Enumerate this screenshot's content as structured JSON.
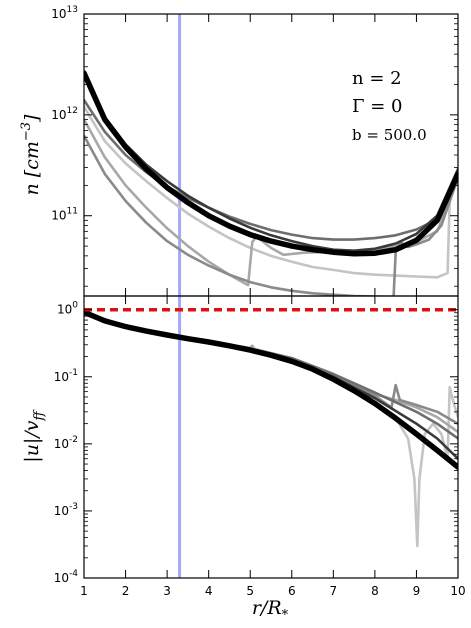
{
  "chart_data": [
    {
      "type": "line",
      "panel": "top",
      "ylabel": "n [cm^-3]",
      "yscale": "log",
      "xlim": [
        1,
        10
      ],
      "ylim": [
        16000000000.0,
        10000000000000.0
      ],
      "yticks": [
        {
          "value": 100000000000.0,
          "base": "10",
          "exp": "11"
        },
        {
          "value": 1000000000000.0,
          "base": "10",
          "exp": "12"
        },
        {
          "value": 10000000000000.0,
          "base": "10",
          "exp": "13"
        }
      ],
      "annotations": [
        "n = 2",
        "Γ = 0",
        "b = 500.0"
      ],
      "vline": {
        "x": 3.3,
        "color": "#8a8af5"
      },
      "series": [
        {
          "color": "#c4c4c4",
          "width": 2.6,
          "points": [
            [
              1,
              1200000000000.0
            ],
            [
              1.5,
              550000000000.0
            ],
            [
              2,
              330000000000.0
            ],
            [
              2.5,
              220000000000.0
            ],
            [
              3,
              150000000000.0
            ],
            [
              3.5,
              105000000000.0
            ],
            [
              4,
              78000000000.0
            ],
            [
              4.5,
              60000000000.0
            ],
            [
              5,
              48000000000.0
            ],
            [
              5.5,
              40000000000.0
            ],
            [
              6,
              35000000000.0
            ],
            [
              6.5,
              31000000000.0
            ],
            [
              7,
              29000000000.0
            ],
            [
              7.5,
              27000000000.0
            ],
            [
              8,
              26000000000.0
            ],
            [
              8.5,
              25500000000.0
            ],
            [
              9,
              25000000000.0
            ],
            [
              9.5,
              24500000000.0
            ],
            [
              9.75,
              27000000000.0
            ],
            [
              9.8,
              145000000000.0
            ],
            [
              9.9,
              200000000000.0
            ],
            [
              10,
              240000000000.0
            ]
          ]
        },
        {
          "color": "#a8a8a8",
          "width": 2.6,
          "points": [
            [
              1,
              900000000000.0
            ],
            [
              1.5,
              380000000000.0
            ],
            [
              2,
              200000000000.0
            ],
            [
              2.5,
              120000000000.0
            ],
            [
              3,
              75000000000.0
            ],
            [
              3.5,
              50000000000.0
            ],
            [
              4,
              35000000000.0
            ],
            [
              4.5,
              26000000000.0
            ],
            [
              4.9,
              21000000000.0
            ],
            [
              4.95,
              20500000000.0
            ],
            [
              5.05,
              55000000000.0
            ],
            [
              5.15,
              62000000000.0
            ],
            [
              5.5,
              48000000000.0
            ],
            [
              5.8,
              41000000000.0
            ],
            [
              6.3,
              43000000000.0
            ],
            [
              7,
              44000000000.0
            ],
            [
              7.5,
              45000000000.0
            ],
            [
              8,
              47000000000.0
            ],
            [
              8.5,
              50000000000.0
            ],
            [
              9,
              55000000000.0
            ],
            [
              9.5,
              70000000000.0
            ],
            [
              10,
              230000000000.0
            ]
          ]
        },
        {
          "color": "#8a8a8a",
          "width": 2.6,
          "points": [
            [
              1,
              620000000000.0
            ],
            [
              1.5,
              260000000000.0
            ],
            [
              2,
              140000000000.0
            ],
            [
              2.5,
              85000000000.0
            ],
            [
              3,
              56000000000.0
            ],
            [
              3.5,
              41000000000.0
            ],
            [
              4,
              32000000000.0
            ],
            [
              4.5,
              26000000000.0
            ],
            [
              5,
              22000000000.0
            ],
            [
              5.5,
              19500000000.0
            ],
            [
              6,
              18000000000.0
            ],
            [
              6.5,
              17000000000.0
            ],
            [
              7,
              16500000000.0
            ],
            [
              7.5,
              16000000000.0
            ],
            [
              8,
              15800000000.0
            ],
            [
              8.45,
              15700000000.0
            ],
            [
              8.5,
              44000000000.0
            ],
            [
              8.6,
              55000000000.0
            ],
            [
              8.8,
              49000000000.0
            ],
            [
              9,
              52000000000.0
            ],
            [
              9.3,
              58000000000.0
            ],
            [
              9.6,
              80000000000.0
            ],
            [
              10,
              240000000000.0
            ]
          ]
        },
        {
          "color": "#6e6e6e",
          "width": 2.6,
          "points": [
            [
              1,
              1400000000000.0
            ],
            [
              1.5,
              680000000000.0
            ],
            [
              2,
              400000000000.0
            ],
            [
              2.5,
              270000000000.0
            ],
            [
              3,
              195000000000.0
            ],
            [
              3.5,
              150000000000.0
            ],
            [
              4,
              120000000000.0
            ],
            [
              4.5,
              98000000000.0
            ],
            [
              5,
              83000000000.0
            ],
            [
              5.5,
              72000000000.0
            ],
            [
              6,
              65000000000.0
            ],
            [
              6.5,
              60000000000.0
            ],
            [
              7,
              58000000000.0
            ],
            [
              7.5,
              58000000000.0
            ],
            [
              8,
              60000000000.0
            ],
            [
              8.5,
              64000000000.0
            ],
            [
              9,
              73000000000.0
            ],
            [
              9.5,
              92000000000.0
            ],
            [
              10,
              280000000000.0
            ]
          ]
        },
        {
          "color": "#3a3a3a",
          "width": 2.6,
          "points": [
            [
              1,
              2500000000000.0
            ],
            [
              1.5,
              950000000000.0
            ],
            [
              2,
              510000000000.0
            ],
            [
              2.5,
              320000000000.0
            ],
            [
              3,
              220000000000.0
            ],
            [
              3.5,
              158000000000.0
            ],
            [
              4,
              120000000000.0
            ],
            [
              4.5,
              94000000000.0
            ],
            [
              5,
              76000000000.0
            ],
            [
              5.5,
              64000000000.0
            ],
            [
              6,
              56000000000.0
            ],
            [
              6.5,
              50000000000.0
            ],
            [
              7,
              46000000000.0
            ],
            [
              7.5,
              45000000000.0
            ],
            [
              8,
              47000000000.0
            ],
            [
              8.5,
              53000000000.0
            ],
            [
              9,
              66000000000.0
            ],
            [
              9.5,
              100000000000.0
            ],
            [
              10,
              290000000000.0
            ]
          ]
        },
        {
          "color": "#000000",
          "width": 5.5,
          "points": [
            [
              1,
              2600000000000.0
            ],
            [
              1.5,
              900000000000.0
            ],
            [
              2,
              480000000000.0
            ],
            [
              2.5,
              290000000000.0
            ],
            [
              3,
              190000000000.0
            ],
            [
              3.5,
              135000000000.0
            ],
            [
              4,
              100000000000.0
            ],
            [
              4.5,
              79000000000.0
            ],
            [
              5,
              65000000000.0
            ],
            [
              5.5,
              56000000000.0
            ],
            [
              6,
              50000000000.0
            ],
            [
              6.5,
              46000000000.0
            ],
            [
              7,
              43500000000.0
            ],
            [
              7.5,
              42000000000.0
            ],
            [
              8,
              42500000000.0
            ],
            [
              8.5,
              46000000000.0
            ],
            [
              9,
              57000000000.0
            ],
            [
              9.5,
              90000000000.0
            ],
            [
              10,
              260000000000.0
            ]
          ]
        }
      ]
    },
    {
      "type": "line",
      "panel": "bottom",
      "xlabel": "r/R_*",
      "ylabel": "|u|/v_ff",
      "yscale": "log",
      "xlim": [
        1,
        10
      ],
      "ylim": [
        0.0001,
        1.6
      ],
      "xticks": [
        "1",
        "2",
        "3",
        "4",
        "5",
        "6",
        "7",
        "8",
        "9",
        "10"
      ],
      "yticks": [
        {
          "value": 0.0001,
          "base": "10",
          "exp": "-4"
        },
        {
          "value": 0.001,
          "base": "10",
          "exp": "-3"
        },
        {
          "value": 0.01,
          "base": "10",
          "exp": "-2"
        },
        {
          "value": 0.1,
          "base": "10",
          "exp": "-1"
        },
        {
          "value": 1,
          "base": "10",
          "exp": "0"
        }
      ],
      "hline": {
        "y": 1.0,
        "color": "#dd1111",
        "style": "dashed"
      },
      "vline": {
        "x": 3.3,
        "color": "#8a8af5"
      },
      "series": [
        {
          "color": "#c4c4c4",
          "width": 2.6,
          "points": [
            [
              1,
              0.92
            ],
            [
              1.5,
              0.68
            ],
            [
              2,
              0.56
            ],
            [
              2.5,
              0.48
            ],
            [
              3,
              0.42
            ],
            [
              3.5,
              0.37
            ],
            [
              4,
              0.33
            ],
            [
              4.5,
              0.29
            ],
            [
              5,
              0.25
            ],
            [
              5.5,
              0.21
            ],
            [
              6,
              0.17
            ],
            [
              6.5,
              0.13
            ],
            [
              7,
              0.095
            ],
            [
              7.5,
              0.065
            ],
            [
              8,
              0.042
            ],
            [
              8.5,
              0.024
            ],
            [
              8.8,
              0.012
            ],
            [
              8.95,
              0.003
            ],
            [
              9.02,
              0.0003
            ],
            [
              9.07,
              0.003
            ],
            [
              9.2,
              0.014
            ],
            [
              9.4,
              0.02
            ],
            [
              9.6,
              0.014
            ],
            [
              9.75,
              0.006
            ],
            [
              9.8,
              0.07
            ],
            [
              9.9,
              0.04
            ],
            [
              10,
              0.025
            ]
          ]
        },
        {
          "color": "#a8a8a8",
          "width": 2.6,
          "points": [
            [
              1,
              0.92
            ],
            [
              2,
              0.56
            ],
            [
              3,
              0.42
            ],
            [
              4,
              0.33
            ],
            [
              5,
              0.27
            ],
            [
              5.05,
              0.29
            ],
            [
              5.1,
              0.26
            ],
            [
              6,
              0.19
            ],
            [
              7,
              0.11
            ],
            [
              8,
              0.055
            ],
            [
              8.5,
              0.045
            ],
            [
              9,
              0.035
            ],
            [
              9.5,
              0.025
            ],
            [
              10,
              0.015
            ]
          ]
        },
        {
          "color": "#8a8a8a",
          "width": 2.6,
          "points": [
            [
              1,
              0.92
            ],
            [
              2,
              0.56
            ],
            [
              3,
              0.42
            ],
            [
              4,
              0.33
            ],
            [
              5,
              0.26
            ],
            [
              6,
              0.18
            ],
            [
              7,
              0.105
            ],
            [
              8,
              0.052
            ],
            [
              8.4,
              0.035
            ],
            [
              8.5,
              0.075
            ],
            [
              8.6,
              0.045
            ],
            [
              9,
              0.038
            ],
            [
              9.5,
              0.03
            ],
            [
              10,
              0.02
            ]
          ]
        },
        {
          "color": "#6e6e6e",
          "width": 2.6,
          "points": [
            [
              1,
              0.92
            ],
            [
              2,
              0.56
            ],
            [
              3,
              0.42
            ],
            [
              4,
              0.33
            ],
            [
              5,
              0.26
            ],
            [
              6,
              0.19
            ],
            [
              7,
              0.11
            ],
            [
              8,
              0.058
            ],
            [
              9,
              0.03
            ],
            [
              9.5,
              0.02
            ],
            [
              10,
              0.012
            ]
          ]
        },
        {
          "color": "#3a3a3a",
          "width": 2.6,
          "points": [
            [
              1,
              0.92
            ],
            [
              2,
              0.56
            ],
            [
              3,
              0.42
            ],
            [
              4,
              0.33
            ],
            [
              5,
              0.26
            ],
            [
              6,
              0.18
            ],
            [
              7,
              0.1
            ],
            [
              8,
              0.048
            ],
            [
              9,
              0.02
            ],
            [
              9.5,
              0.012
            ],
            [
              10,
              0.006
            ]
          ]
        },
        {
          "color": "#000000",
          "width": 5.5,
          "points": [
            [
              1,
              0.92
            ],
            [
              1.5,
              0.68
            ],
            [
              2,
              0.56
            ],
            [
              2.5,
              0.48
            ],
            [
              3,
              0.42
            ],
            [
              3.5,
              0.37
            ],
            [
              4,
              0.33
            ],
            [
              4.5,
              0.29
            ],
            [
              5,
              0.25
            ],
            [
              5.5,
              0.21
            ],
            [
              6,
              0.17
            ],
            [
              6.5,
              0.13
            ],
            [
              7,
              0.092
            ],
            [
              7.5,
              0.062
            ],
            [
              8,
              0.04
            ],
            [
              8.5,
              0.024
            ],
            [
              9,
              0.014
            ],
            [
              9.5,
              0.008
            ],
            [
              10,
              0.0045
            ]
          ]
        }
      ]
    }
  ]
}
